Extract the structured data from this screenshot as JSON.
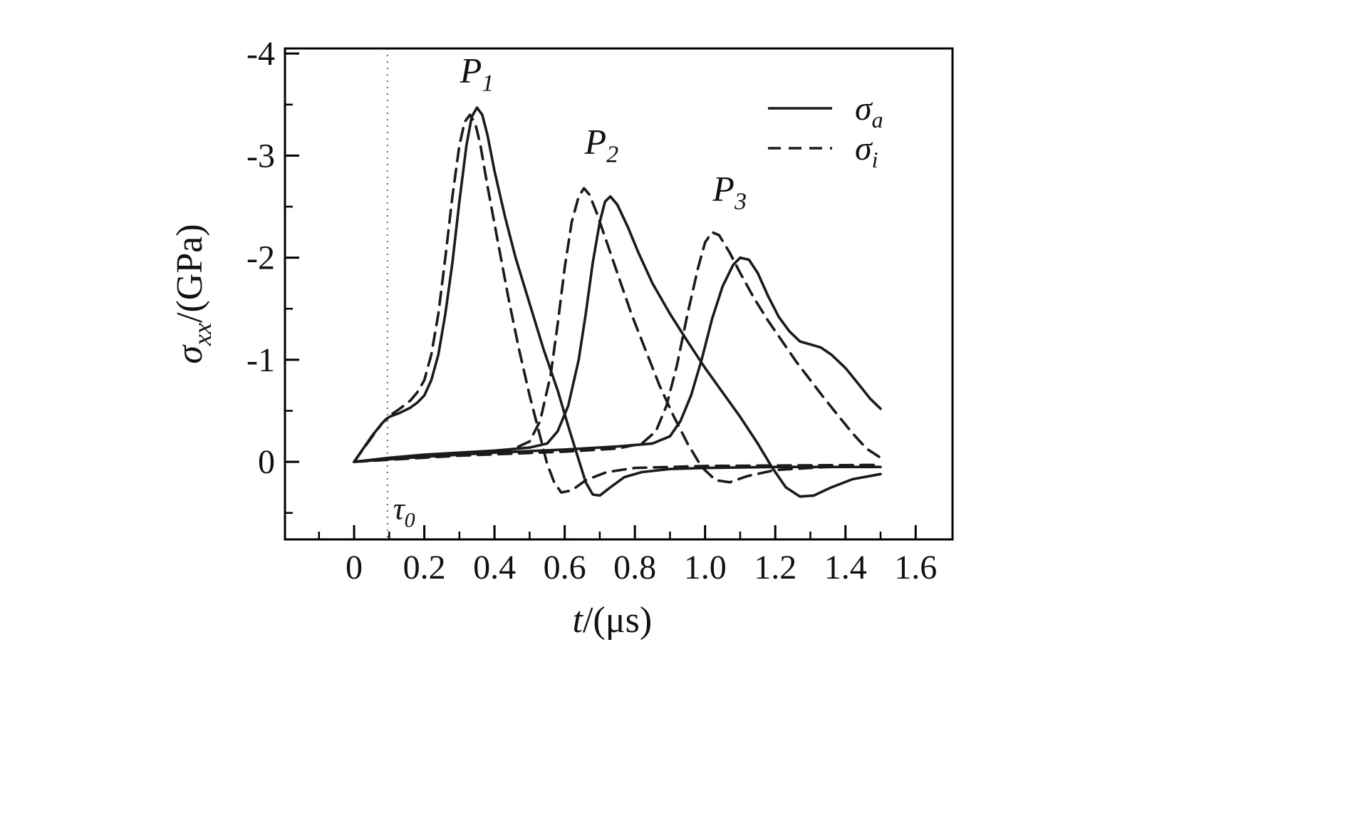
{
  "colors": {
    "background": "#ffffff",
    "line": "#1a1a1a",
    "frame": "#000000",
    "reference_line": "#666666"
  },
  "chart_data": {
    "type": "line",
    "title": "",
    "xlabel": {
      "italic": "t",
      "rest": "/(μs)"
    },
    "ylabel": {
      "main": "σ",
      "sub": "xx",
      "rest": "/(GPa)"
    },
    "axes": {
      "x_range": [
        -0.197,
        1.705
      ],
      "y_range_top_to_bottom": [
        -4.05,
        0.76
      ],
      "y_inverted_negative_up": true,
      "grid": false
    },
    "x_ticks": {
      "major_values": [
        0,
        0.2,
        0.4,
        0.6,
        0.8,
        1.0,
        1.2,
        1.4,
        1.6
      ],
      "major_labels": [
        "0",
        "0.2",
        "0.4",
        "0.6",
        "0.8",
        "1.0",
        "1.2",
        "1.4",
        "1.6"
      ],
      "minor_values": [
        -0.1,
        0.1,
        0.3,
        0.5,
        0.7,
        0.9,
        1.1,
        1.3,
        1.5
      ]
    },
    "y_ticks": {
      "major_values": [
        -4,
        -3,
        -2,
        -1,
        0
      ],
      "major_labels": [
        "-4",
        "-3",
        "-2",
        "-1",
        "0"
      ],
      "minor_values": [
        -3.5,
        -2.5,
        -1.5,
        -0.5,
        0.5
      ]
    },
    "reference_line": {
      "t": 0.095,
      "label_main": "τ",
      "label_sub": "0"
    },
    "annotations": [
      {
        "main": "P",
        "sub": "1",
        "t": 0.35,
        "v": -3.72
      },
      {
        "main": "P",
        "sub": "2",
        "t": 0.705,
        "v": -3.02
      },
      {
        "main": "P",
        "sub": "3",
        "t": 1.07,
        "v": -2.56
      }
    ],
    "legend": {
      "position": "top-right",
      "items": [
        {
          "style": "solid",
          "label_main": "σ",
          "label_sub": "a"
        },
        {
          "style": "dashed",
          "label_main": "σ",
          "label_sub": "i"
        }
      ]
    },
    "series": [
      {
        "name": "sigma-a-P1",
        "style": "solid",
        "points": [
          [
            0,
            0
          ],
          [
            0.02,
            -0.1
          ],
          [
            0.05,
            -0.25
          ],
          [
            0.08,
            -0.38
          ],
          [
            0.1,
            -0.44
          ],
          [
            0.13,
            -0.48
          ],
          [
            0.16,
            -0.53
          ],
          [
            0.18,
            -0.58
          ],
          [
            0.2,
            -0.65
          ],
          [
            0.22,
            -0.8
          ],
          [
            0.24,
            -1.05
          ],
          [
            0.26,
            -1.45
          ],
          [
            0.28,
            -1.95
          ],
          [
            0.3,
            -2.55
          ],
          [
            0.32,
            -3.1
          ],
          [
            0.335,
            -3.38
          ],
          [
            0.35,
            -3.47
          ],
          [
            0.365,
            -3.4
          ],
          [
            0.38,
            -3.2
          ],
          [
            0.4,
            -2.85
          ],
          [
            0.43,
            -2.4
          ],
          [
            0.46,
            -2.0
          ],
          [
            0.5,
            -1.55
          ],
          [
            0.54,
            -1.1
          ],
          [
            0.58,
            -0.7
          ],
          [
            0.61,
            -0.35
          ],
          [
            0.64,
            -0.02
          ],
          [
            0.66,
            0.2
          ],
          [
            0.68,
            0.32
          ],
          [
            0.7,
            0.33
          ],
          [
            0.73,
            0.25
          ],
          [
            0.77,
            0.15
          ],
          [
            0.82,
            0.1
          ],
          [
            0.9,
            0.07
          ],
          [
            1.0,
            0.06
          ],
          [
            1.2,
            0.05
          ],
          [
            1.5,
            0.05
          ]
        ]
      },
      {
        "name": "sigma-a-P2",
        "style": "solid",
        "points": [
          [
            0,
            0
          ],
          [
            0.1,
            -0.04
          ],
          [
            0.2,
            -0.07
          ],
          [
            0.3,
            -0.09
          ],
          [
            0.4,
            -0.11
          ],
          [
            0.5,
            -0.14
          ],
          [
            0.55,
            -0.18
          ],
          [
            0.58,
            -0.3
          ],
          [
            0.61,
            -0.55
          ],
          [
            0.64,
            -1.0
          ],
          [
            0.66,
            -1.45
          ],
          [
            0.68,
            -1.95
          ],
          [
            0.7,
            -2.35
          ],
          [
            0.715,
            -2.55
          ],
          [
            0.73,
            -2.6
          ],
          [
            0.75,
            -2.52
          ],
          [
            0.78,
            -2.3
          ],
          [
            0.81,
            -2.05
          ],
          [
            0.85,
            -1.75
          ],
          [
            0.9,
            -1.45
          ],
          [
            0.95,
            -1.18
          ],
          [
            1.0,
            -0.92
          ],
          [
            1.05,
            -0.68
          ],
          [
            1.1,
            -0.44
          ],
          [
            1.15,
            -0.18
          ],
          [
            1.19,
            0.05
          ],
          [
            1.23,
            0.25
          ],
          [
            1.27,
            0.34
          ],
          [
            1.31,
            0.33
          ],
          [
            1.36,
            0.25
          ],
          [
            1.42,
            0.17
          ],
          [
            1.5,
            0.12
          ]
        ]
      },
      {
        "name": "sigma-a-P3",
        "style": "solid",
        "points": [
          [
            0,
            0
          ],
          [
            0.2,
            -0.05
          ],
          [
            0.4,
            -0.09
          ],
          [
            0.6,
            -0.12
          ],
          [
            0.75,
            -0.15
          ],
          [
            0.85,
            -0.18
          ],
          [
            0.9,
            -0.25
          ],
          [
            0.93,
            -0.4
          ],
          [
            0.96,
            -0.65
          ],
          [
            0.99,
            -1.0
          ],
          [
            1.02,
            -1.4
          ],
          [
            1.05,
            -1.72
          ],
          [
            1.08,
            -1.93
          ],
          [
            1.1,
            -2.0
          ],
          [
            1.125,
            -1.98
          ],
          [
            1.15,
            -1.85
          ],
          [
            1.18,
            -1.62
          ],
          [
            1.21,
            -1.42
          ],
          [
            1.24,
            -1.28
          ],
          [
            1.27,
            -1.18
          ],
          [
            1.3,
            -1.15
          ],
          [
            1.33,
            -1.12
          ],
          [
            1.36,
            -1.05
          ],
          [
            1.4,
            -0.92
          ],
          [
            1.44,
            -0.75
          ],
          [
            1.47,
            -0.62
          ],
          [
            1.5,
            -0.52
          ]
        ]
      },
      {
        "name": "sigma-i-P1",
        "style": "dashed",
        "points": [
          [
            0,
            0
          ],
          [
            0.05,
            -0.24
          ],
          [
            0.08,
            -0.38
          ],
          [
            0.1,
            -0.45
          ],
          [
            0.13,
            -0.52
          ],
          [
            0.16,
            -0.6
          ],
          [
            0.18,
            -0.68
          ],
          [
            0.2,
            -0.8
          ],
          [
            0.22,
            -1.05
          ],
          [
            0.24,
            -1.45
          ],
          [
            0.26,
            -2.0
          ],
          [
            0.28,
            -2.6
          ],
          [
            0.3,
            -3.1
          ],
          [
            0.315,
            -3.33
          ],
          [
            0.33,
            -3.4
          ],
          [
            0.345,
            -3.32
          ],
          [
            0.36,
            -3.1
          ],
          [
            0.38,
            -2.7
          ],
          [
            0.41,
            -2.15
          ],
          [
            0.44,
            -1.6
          ],
          [
            0.47,
            -1.1
          ],
          [
            0.5,
            -0.65
          ],
          [
            0.53,
            -0.25
          ],
          [
            0.55,
            0.02
          ],
          [
            0.57,
            0.2
          ],
          [
            0.59,
            0.3
          ],
          [
            0.62,
            0.28
          ],
          [
            0.66,
            0.18
          ],
          [
            0.72,
            0.1
          ],
          [
            0.8,
            0.06
          ],
          [
            1.0,
            0.04
          ],
          [
            1.5,
            0.03
          ]
        ]
      },
      {
        "name": "sigma-i-P2",
        "style": "dashed",
        "points": [
          [
            0,
            0
          ],
          [
            0.2,
            -0.06
          ],
          [
            0.35,
            -0.09
          ],
          [
            0.45,
            -0.12
          ],
          [
            0.5,
            -0.2
          ],
          [
            0.53,
            -0.4
          ],
          [
            0.56,
            -0.85
          ],
          [
            0.58,
            -1.35
          ],
          [
            0.6,
            -1.9
          ],
          [
            0.62,
            -2.35
          ],
          [
            0.64,
            -2.6
          ],
          [
            0.655,
            -2.68
          ],
          [
            0.67,
            -2.62
          ],
          [
            0.69,
            -2.45
          ],
          [
            0.72,
            -2.15
          ],
          [
            0.75,
            -1.85
          ],
          [
            0.79,
            -1.45
          ],
          [
            0.83,
            -1.1
          ],
          [
            0.87,
            -0.75
          ],
          [
            0.91,
            -0.45
          ],
          [
            0.95,
            -0.18
          ],
          [
            0.99,
            0.05
          ],
          [
            1.03,
            0.18
          ],
          [
            1.07,
            0.2
          ],
          [
            1.12,
            0.14
          ],
          [
            1.2,
            0.08
          ],
          [
            1.35,
            0.05
          ],
          [
            1.5,
            0.04
          ]
        ]
      },
      {
        "name": "sigma-i-P3",
        "style": "dashed",
        "points": [
          [
            0,
            0
          ],
          [
            0.3,
            -0.06
          ],
          [
            0.6,
            -0.1
          ],
          [
            0.75,
            -0.13
          ],
          [
            0.82,
            -0.18
          ],
          [
            0.86,
            -0.3
          ],
          [
            0.89,
            -0.55
          ],
          [
            0.92,
            -0.95
          ],
          [
            0.95,
            -1.45
          ],
          [
            0.98,
            -1.9
          ],
          [
            1.0,
            -2.15
          ],
          [
            1.02,
            -2.25
          ],
          [
            1.04,
            -2.22
          ],
          [
            1.07,
            -2.05
          ],
          [
            1.1,
            -1.85
          ],
          [
            1.14,
            -1.6
          ],
          [
            1.18,
            -1.38
          ],
          [
            1.22,
            -1.18
          ],
          [
            1.26,
            -0.98
          ],
          [
            1.3,
            -0.8
          ],
          [
            1.34,
            -0.62
          ],
          [
            1.38,
            -0.45
          ],
          [
            1.42,
            -0.28
          ],
          [
            1.46,
            -0.13
          ],
          [
            1.5,
            -0.04
          ]
        ]
      }
    ]
  }
}
